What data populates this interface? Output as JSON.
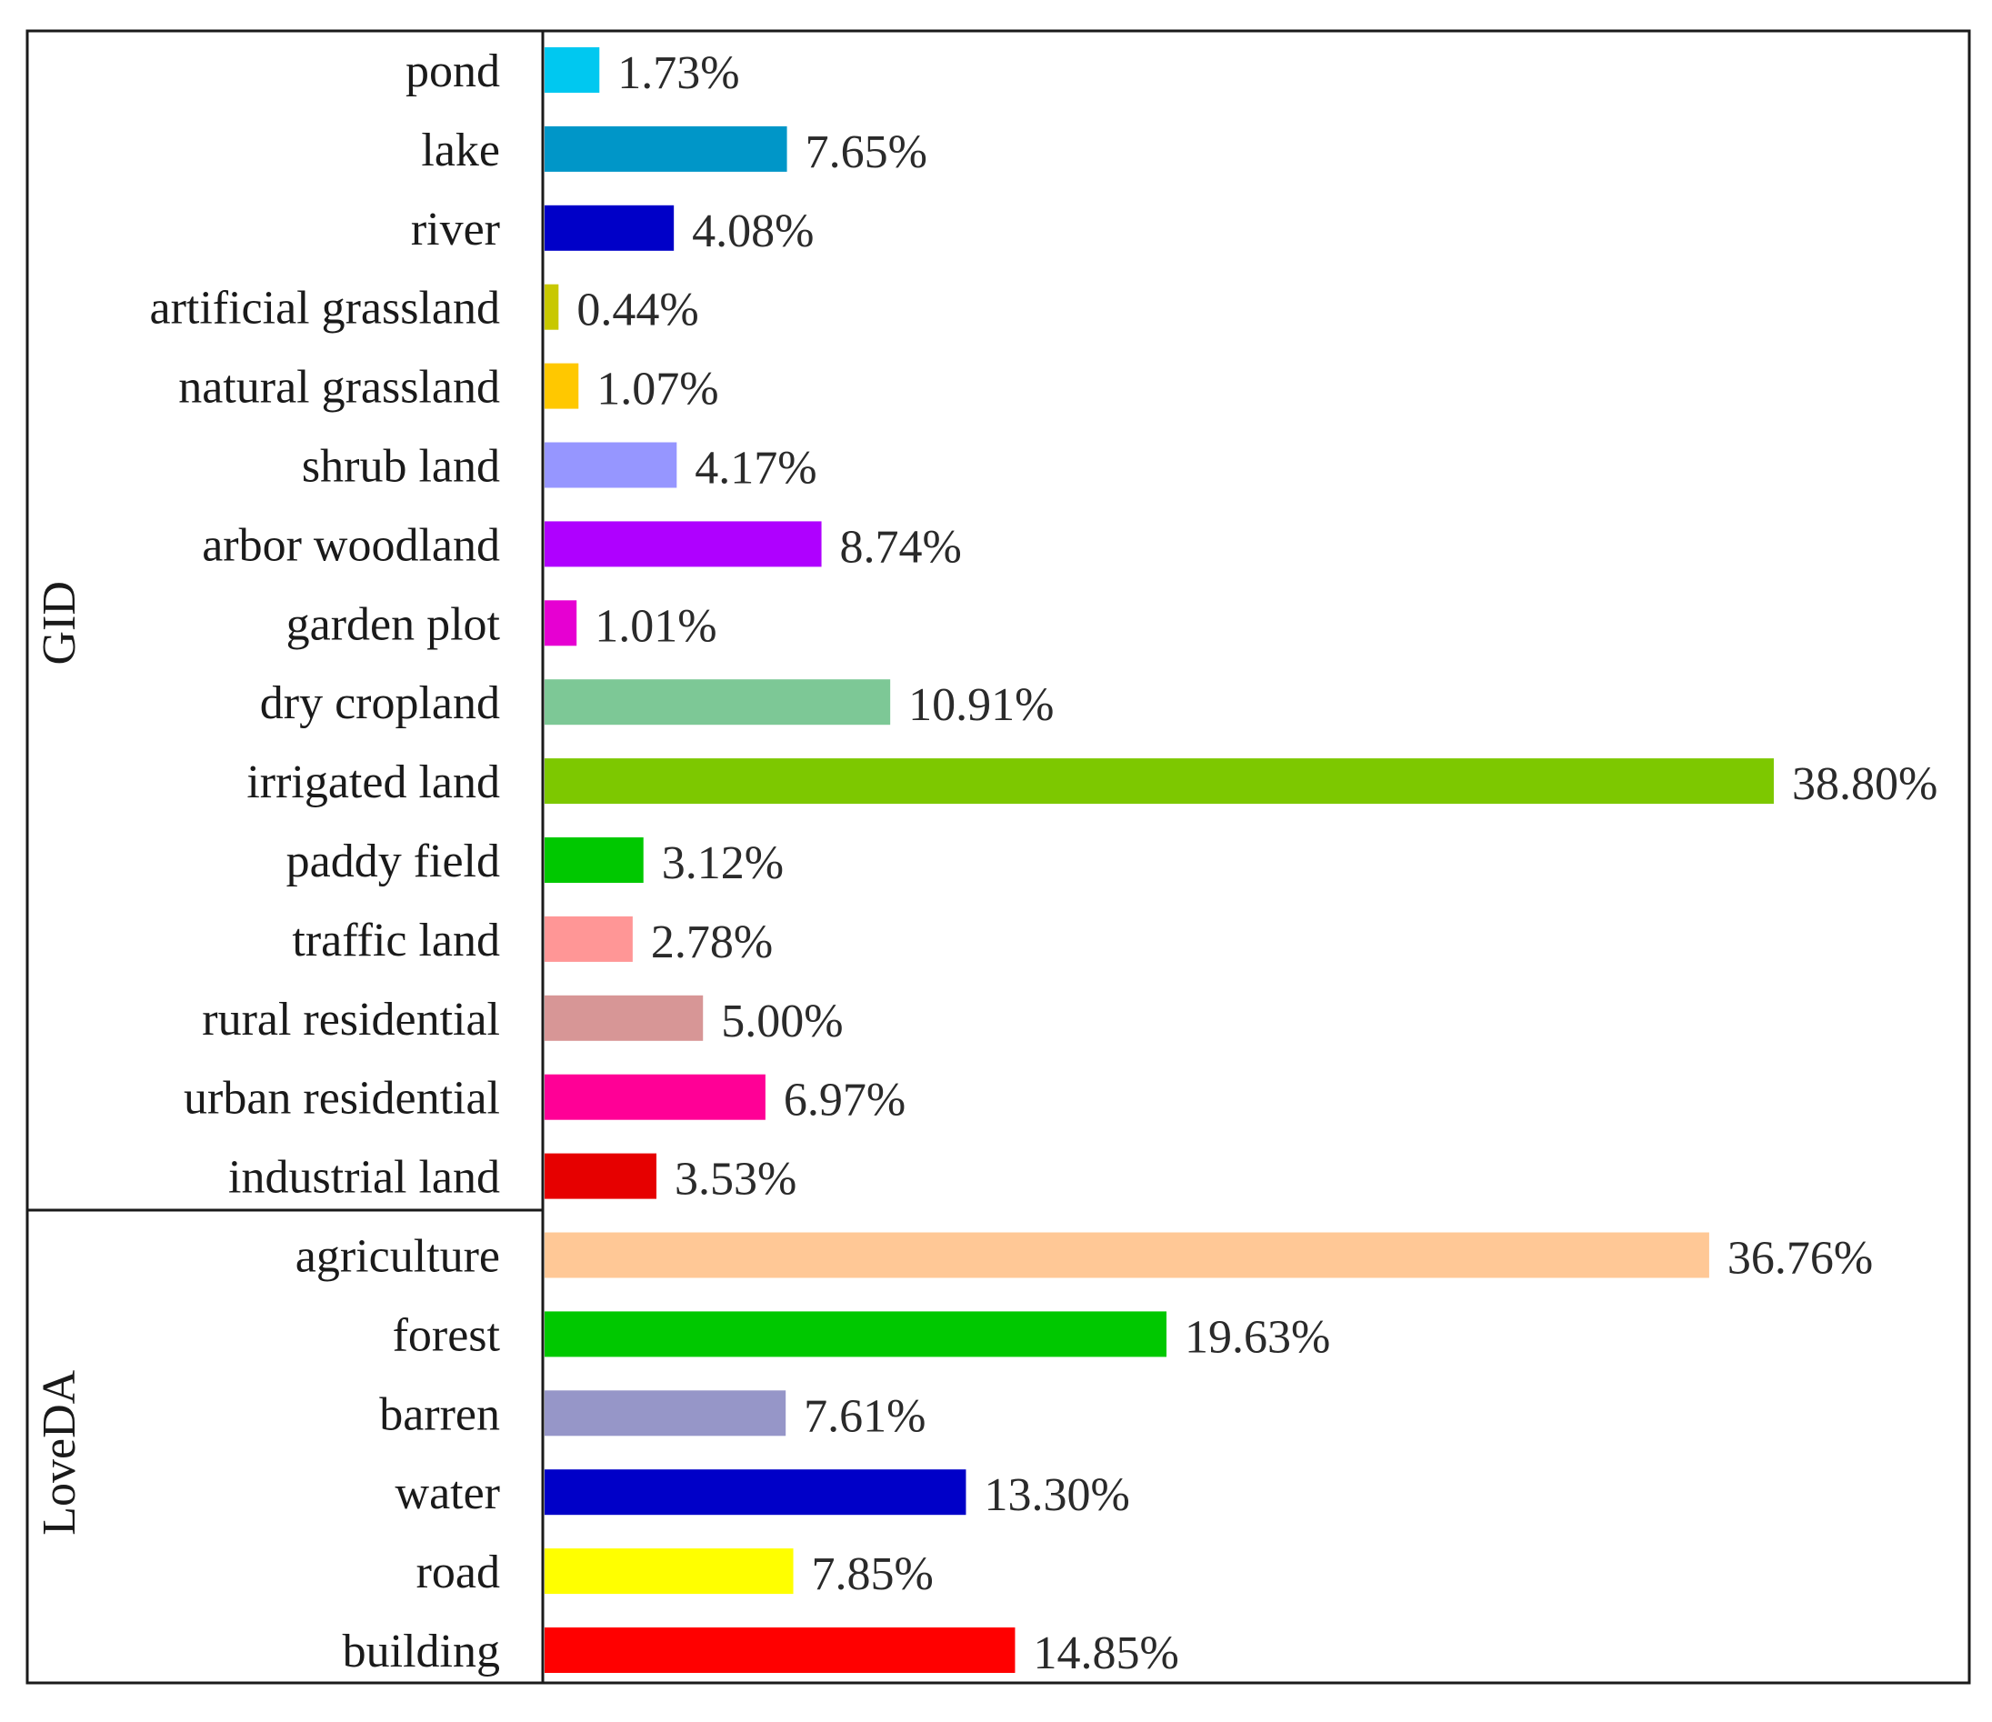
{
  "chart_data": {
    "type": "bar",
    "orientation": "horizontal",
    "title": "",
    "xlabel": "",
    "ylabel": "",
    "value_unit": "%",
    "xlim": [
      0,
      40
    ],
    "grid": false,
    "legend": "none",
    "groups": [
      {
        "name": "GID",
        "categories": [
          "pond",
          "lake",
          "river",
          "artificial grassland",
          "natural grassland",
          "shrub land",
          "arbor woodland",
          "garden plot",
          "dry cropland",
          "irrigated land",
          "paddy field",
          "traffic land",
          "rural residential",
          "urban residential",
          "industrial land"
        ],
        "values": [
          1.73,
          7.65,
          4.08,
          0.44,
          1.07,
          4.17,
          8.74,
          1.01,
          10.91,
          38.8,
          3.12,
          2.78,
          5.0,
          6.97,
          3.53
        ],
        "labels": [
          "1.73%",
          "7.65%",
          "4.08%",
          "0.44%",
          "1.07%",
          "4.17%",
          "8.74%",
          "1.01%",
          "10.91%",
          "38.80%",
          "3.12%",
          "2.78%",
          "5.00%",
          "6.97%",
          "3.53%"
        ],
        "colors": [
          "#00C8F0",
          "#0096C8",
          "#0000C8",
          "#C8C800",
          "#FFC800",
          "#9696FF",
          "#AF00FF",
          "#E600D2",
          "#7DC896",
          "#7DC800",
          "#00C800",
          "#FF9696",
          "#D79696",
          "#FF0096",
          "#E60000"
        ]
      },
      {
        "name": "LoveDA",
        "categories": [
          "agriculture",
          "forest",
          "barren",
          "water",
          "road",
          "building"
        ],
        "values": [
          36.76,
          19.63,
          7.61,
          13.3,
          7.85,
          14.85
        ],
        "labels": [
          "36.76%",
          "19.63%",
          "7.61%",
          "13.30%",
          "7.85%",
          "14.85%"
        ],
        "colors": [
          "#FFC896",
          "#00C800",
          "#9696C8",
          "#0000C8",
          "#FFFF00",
          "#FF0000"
        ]
      }
    ]
  }
}
